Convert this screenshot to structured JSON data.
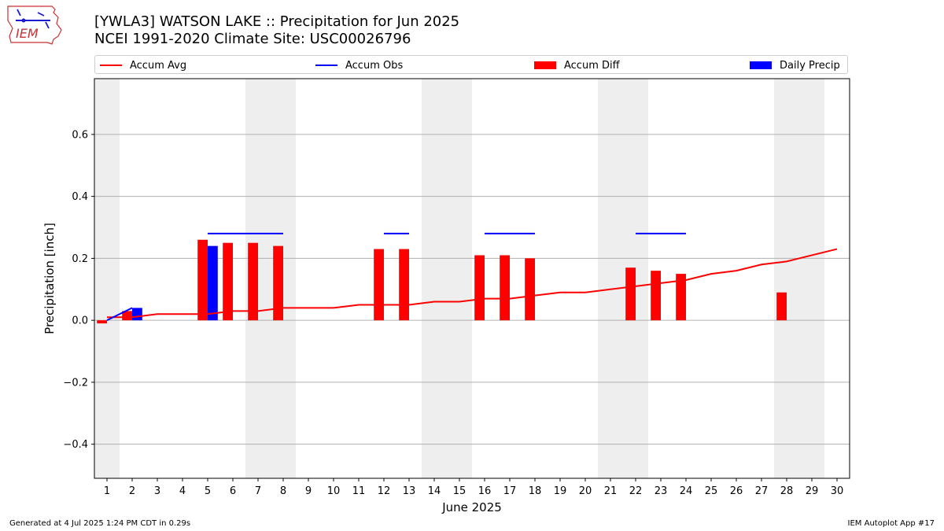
{
  "header": {
    "title_line1": "[YWLA3] WATSON LAKE :: Precipitation for Jun 2025",
    "title_line2": "NCEI 1991-2020 Climate Site: USC00026796",
    "logo_text": "IEM"
  },
  "legend": {
    "accum_avg": "Accum Avg",
    "accum_obs": "Accum Obs",
    "accum_diff": "Accum Diff",
    "daily_precip": "Daily Precip"
  },
  "footer": {
    "generated": "Generated at 4 Jul 2025 1:24 PM CDT in 0.29s",
    "app": "IEM Autoplot App #17"
  },
  "colors": {
    "avg": "#ff0000",
    "obs": "#0000ff",
    "diff": "#ff0000",
    "daily": "#0000ff",
    "weekend": "#eeeeee",
    "grid": "#b0b0b0"
  },
  "chart_data": {
    "type": "bar",
    "xlabel": "June 2025",
    "ylabel": "Precipitation [inch]",
    "xlim": [
      0.5,
      30.5
    ],
    "ylim": [
      -0.51,
      0.78
    ],
    "yticks": [
      -0.4,
      -0.2,
      0.0,
      0.2,
      0.4,
      0.6
    ],
    "ytick_labels": [
      "−0.4",
      "−0.2",
      "0.0",
      "0.2",
      "0.4",
      "0.6"
    ],
    "days": [
      1,
      2,
      3,
      4,
      5,
      6,
      7,
      8,
      9,
      10,
      11,
      12,
      13,
      14,
      15,
      16,
      17,
      18,
      19,
      20,
      21,
      22,
      23,
      24,
      25,
      26,
      27,
      28,
      29,
      30
    ],
    "grid": true,
    "legend_position": "top",
    "weekend_spans": [
      [
        0.5,
        1.5
      ],
      [
        6.5,
        8.5
      ],
      [
        13.5,
        15.5
      ],
      [
        20.5,
        22.5
      ],
      [
        27.5,
        29.5
      ]
    ],
    "series": [
      {
        "name": "Accum Avg",
        "kind": "line",
        "x": [
          1,
          2,
          3,
          4,
          5,
          6,
          7,
          8,
          9,
          10,
          11,
          12,
          13,
          14,
          15,
          16,
          17,
          18,
          19,
          20,
          21,
          22,
          23,
          24,
          25,
          26,
          27,
          28,
          29,
          30
        ],
        "values": [
          0.01,
          0.01,
          0.02,
          0.02,
          0.02,
          0.03,
          0.03,
          0.04,
          0.04,
          0.04,
          0.05,
          0.05,
          0.05,
          0.06,
          0.06,
          0.07,
          0.07,
          0.08,
          0.09,
          0.09,
          0.1,
          0.11,
          0.12,
          0.13,
          0.15,
          0.16,
          0.18,
          0.19,
          0.21,
          0.23
        ]
      },
      {
        "name": "Accum Obs",
        "kind": "step-segments",
        "segments": [
          {
            "x": [
              1,
              2
            ],
            "values": [
              0.0,
              0.04
            ]
          },
          {
            "x": [
              5,
              8
            ],
            "values": [
              0.28,
              0.28
            ]
          },
          {
            "x": [
              12,
              13
            ],
            "values": [
              0.28,
              0.28
            ]
          },
          {
            "x": [
              16,
              18
            ],
            "values": [
              0.28,
              0.28
            ]
          },
          {
            "x": [
              22,
              24
            ],
            "values": [
              0.28,
              0.28
            ]
          }
        ]
      },
      {
        "name": "Accum Diff",
        "kind": "bar",
        "x": [
          1,
          2,
          5,
          6,
          7,
          8,
          12,
          13,
          16,
          17,
          18,
          22,
          23,
          24,
          28
        ],
        "values": [
          -0.01,
          0.03,
          0.26,
          0.25,
          0.25,
          0.24,
          0.23,
          0.23,
          0.21,
          0.21,
          0.2,
          0.17,
          0.16,
          0.15,
          0.09
        ]
      },
      {
        "name": "Daily Precip",
        "kind": "bar",
        "x": [
          2,
          5
        ],
        "values": [
          0.04,
          0.24
        ]
      }
    ]
  }
}
